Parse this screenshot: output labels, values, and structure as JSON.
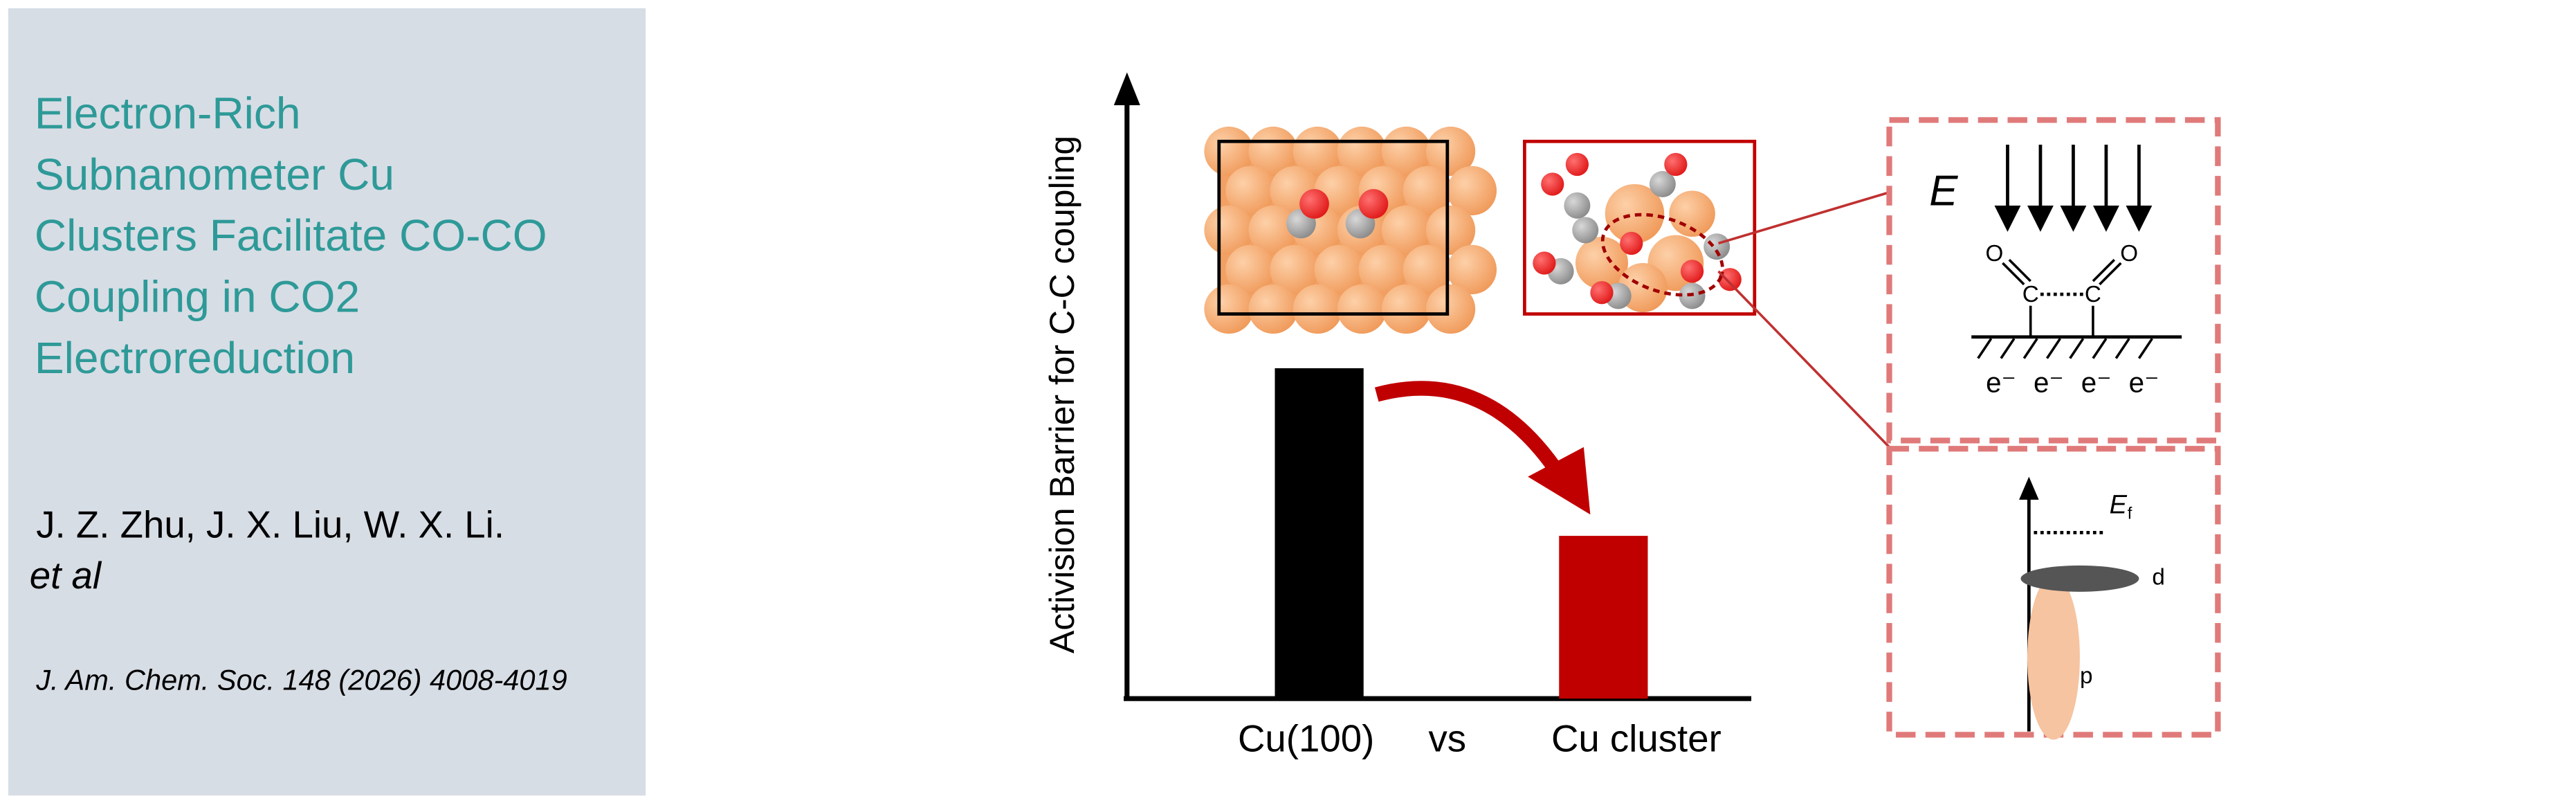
{
  "header": {
    "title_lines": [
      "Electron-Rich",
      "Subnanometer Cu",
      "Clusters Facilitate CO-CO",
      "Coupling in CO2",
      "Electroreduction"
    ],
    "authors": "J. Z. Zhu, J. X. Liu, W. X. Li.",
    "et_al": "et al",
    "citation": "J. Am. Chem. Soc. 148 (2026) 4008-4019"
  },
  "figure": {
    "y_axis_label": "Activision Barrier for C-C coupling",
    "x_labels": [
      "Cu(100)",
      "vs",
      "Cu cluster"
    ],
    "field_label": "E",
    "carbon_label": "C",
    "oxygen_label": "O",
    "electrons": [
      "e⁻",
      "e⁻",
      "e⁻",
      "e⁻"
    ],
    "fermi_label": "E",
    "fermi_subscript": "f",
    "orbital_labels": [
      "d",
      "p"
    ]
  }
}
